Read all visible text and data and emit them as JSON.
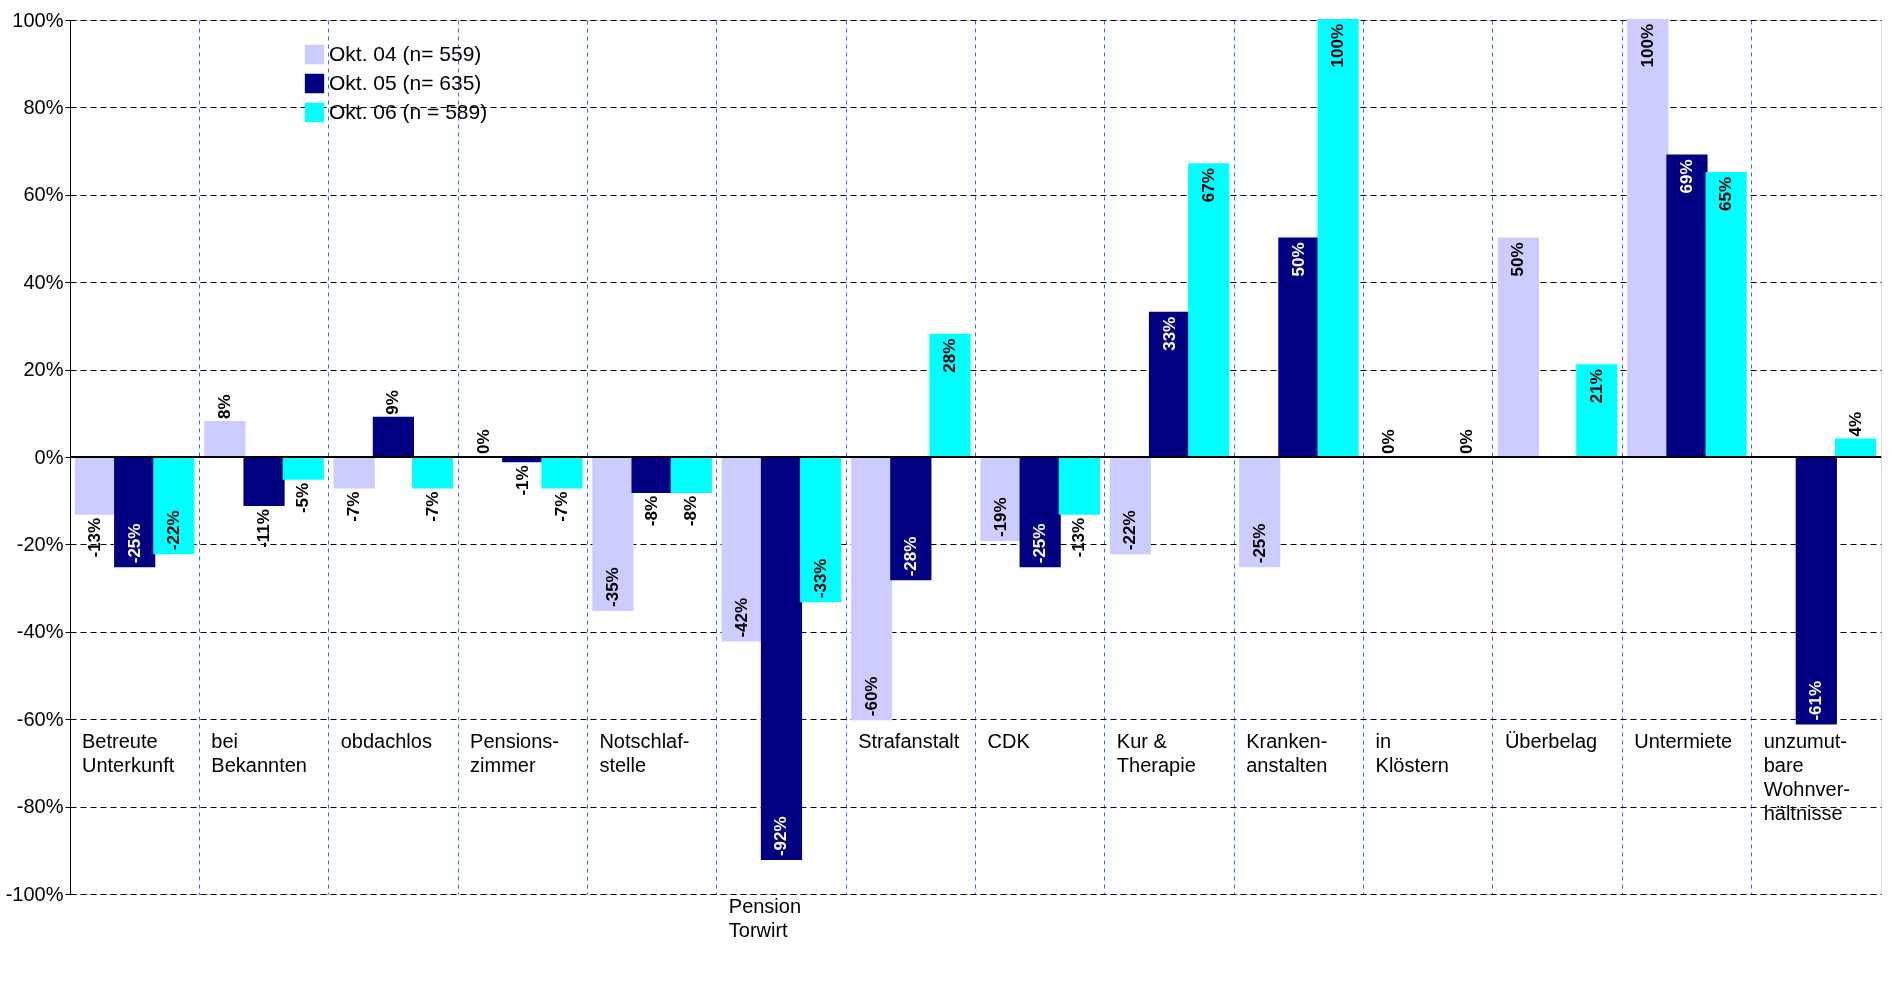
{
  "chart_data": {
    "type": "bar",
    "categories": [
      "Betreute\nUnterkunft",
      "bei\nBekannten",
      "obdachlos",
      "Pensions-\nzimmer",
      "Notschlaf-\nstelle",
      "Pension\nTorwirt",
      "Strafanstalt",
      "CDK",
      "Kur &\nTherapie",
      "Kranken-\nanstalten",
      "in\nKlöstern",
      "Überbelag",
      "Untermiete",
      "unzumut-\nbare\nWohnver-\nhältnisse"
    ],
    "series": [
      {
        "name": "Okt. 04 (n= 559)",
        "color": "#ccccff",
        "values": [
          -13,
          8,
          -7,
          0,
          -35,
          -42,
          -60,
          -19,
          -22,
          -25,
          0,
          50,
          100,
          null
        ],
        "value_labels": [
          "-13%",
          "8%",
          "-7%",
          "0%",
          "-35%",
          "-42%",
          "-60%",
          "-19%",
          "-22%",
          "-25%",
          "0%",
          "50%",
          "100%",
          null
        ]
      },
      {
        "name": "Okt. 05 (n= 635)",
        "color": "#000080",
        "values": [
          -25,
          -11,
          9,
          -1,
          -8,
          -92,
          -28,
          -25,
          33,
          50,
          null,
          null,
          69,
          -61
        ],
        "value_labels": [
          "-25%",
          "-11%",
          "9%",
          "-1%",
          "-8%",
          "-92%",
          "-28%",
          "-25%",
          "33%",
          "50%",
          null,
          null,
          "69%",
          "-61%"
        ]
      },
      {
        "name": "Okt. 06 (n = 589)",
        "color": "#00ffff",
        "values": [
          -22,
          -5,
          -7,
          -7,
          -8,
          -33,
          28,
          -13,
          67,
          100,
          0,
          21,
          65,
          4
        ],
        "value_labels": [
          "-22%",
          "-5%",
          "-7%",
          "-7%",
          "-8%",
          "-33%",
          "28%",
          "-13%",
          "67%",
          "100%",
          "0%",
          "21%",
          "65%",
          "4%"
        ]
      }
    ],
    "ylim": [
      -100,
      100
    ],
    "yticks": [
      {
        "value": -100,
        "label": "-100%"
      },
      {
        "value": -80,
        "label": "-80%"
      },
      {
        "value": -60,
        "label": "-60%"
      },
      {
        "value": -40,
        "label": "-40%"
      },
      {
        "value": -20,
        "label": "-20%"
      },
      {
        "value": 0,
        "label": "0%"
      },
      {
        "value": 20,
        "label": "20%"
      },
      {
        "value": 40,
        "label": "40%"
      },
      {
        "value": 60,
        "label": "60%"
      },
      {
        "value": 80,
        "label": "80%"
      },
      {
        "value": 100,
        "label": "100%"
      }
    ],
    "grid": true,
    "legend": "top left"
  }
}
